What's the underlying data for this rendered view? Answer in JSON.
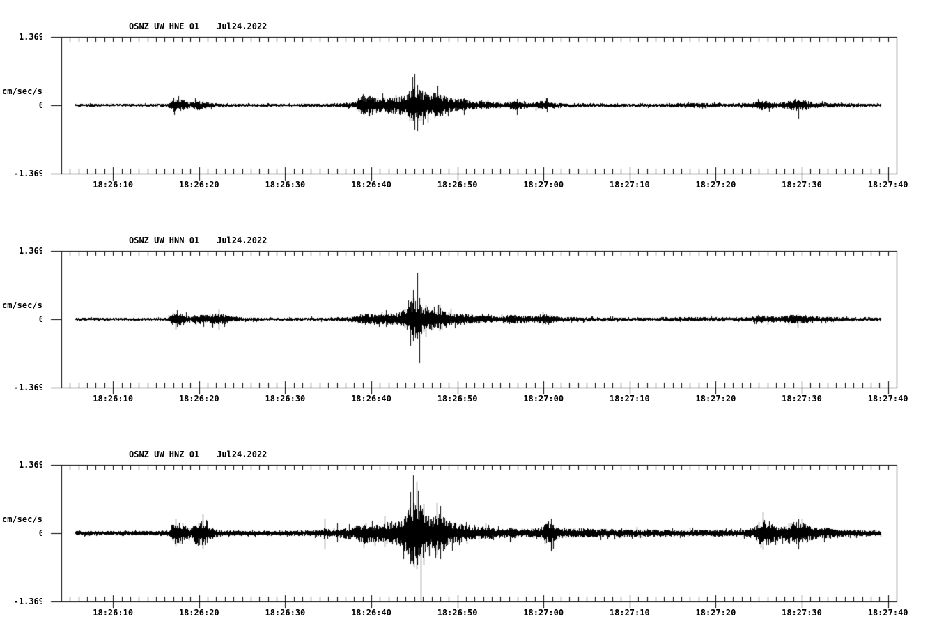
{
  "colors": {
    "background": "#ffffff",
    "foreground": "#000000"
  },
  "y_axis": {
    "unit": "cm/sec/sec",
    "max_label": "1.369",
    "zero_label": "0",
    "min_label": "-1.369"
  },
  "chart_data": [
    {
      "type": "line",
      "kind": "seismogram",
      "title": "QSNZ_UW_HNE_01",
      "date_label": "Jul24,2022",
      "ylabel": "cm/sec/sec",
      "ytick_labels": [
        "1.369",
        "0",
        "-1.369"
      ],
      "ytick_values": [
        1.369,
        0,
        -1.369
      ],
      "ylim": [
        -1.369,
        1.369
      ],
      "x_window": {
        "start_seconds": 4,
        "end_seconds": 101,
        "minor_tick_seconds": 1,
        "major_tick_seconds": 10
      },
      "xticks": [
        {
          "t": 10,
          "label": "18:26:10"
        },
        {
          "t": 20,
          "label": "18:26:20"
        },
        {
          "t": 30,
          "label": "18:26:30"
        },
        {
          "t": 40,
          "label": "18:26:40"
        },
        {
          "t": 50,
          "label": "18:26:50"
        },
        {
          "t": 60,
          "label": "18:27:00"
        },
        {
          "t": 70,
          "label": "18:27:10"
        },
        {
          "t": 80,
          "label": "18:27:20"
        },
        {
          "t": 90,
          "label": "18:27:30"
        },
        {
          "t": 100,
          "label": "18:27:40"
        }
      ],
      "seed": 11,
      "trace": {
        "start": 5.6,
        "end": 99.2,
        "envelope": [
          [
            5.6,
            0.028
          ],
          [
            16.3,
            0.03
          ],
          [
            17.0,
            0.13
          ],
          [
            18.2,
            0.12
          ],
          [
            19.0,
            0.05
          ],
          [
            19.7,
            0.1
          ],
          [
            20.8,
            0.08
          ],
          [
            21.7,
            0.04
          ],
          [
            23,
            0.032
          ],
          [
            28,
            0.03
          ],
          [
            33,
            0.032
          ],
          [
            35.5,
            0.04
          ],
          [
            37.2,
            0.05
          ],
          [
            38.2,
            0.07
          ],
          [
            38.7,
            0.21
          ],
          [
            39.8,
            0.19
          ],
          [
            40.8,
            0.15
          ],
          [
            41.8,
            0.16
          ],
          [
            42.8,
            0.17
          ],
          [
            43.6,
            0.2
          ],
          [
            44.3,
            0.3
          ],
          [
            45.0,
            0.4
          ],
          [
            45.6,
            0.34
          ],
          [
            46.3,
            0.22
          ],
          [
            47.1,
            0.26
          ],
          [
            48.0,
            0.25
          ],
          [
            48.8,
            0.16
          ],
          [
            49.8,
            0.12
          ],
          [
            50.6,
            0.15
          ],
          [
            51.4,
            0.11
          ],
          [
            52.4,
            0.08
          ],
          [
            53.3,
            0.09
          ],
          [
            54.3,
            0.06
          ],
          [
            55.6,
            0.05
          ],
          [
            56.6,
            0.11
          ],
          [
            57.6,
            0.06
          ],
          [
            58.6,
            0.05
          ],
          [
            59.4,
            0.08
          ],
          [
            60.2,
            0.1
          ],
          [
            61.2,
            0.05
          ],
          [
            63,
            0.042
          ],
          [
            66,
            0.038
          ],
          [
            70,
            0.033
          ],
          [
            74,
            0.035
          ],
          [
            77.5,
            0.05
          ],
          [
            79.5,
            0.045
          ],
          [
            81.5,
            0.035
          ],
          [
            84.2,
            0.05
          ],
          [
            85.0,
            0.1
          ],
          [
            86.2,
            0.08
          ],
          [
            87.2,
            0.05
          ],
          [
            88.2,
            0.08
          ],
          [
            89.2,
            0.12
          ],
          [
            90.2,
            0.1
          ],
          [
            91.4,
            0.06
          ],
          [
            93,
            0.05
          ],
          [
            95,
            0.04
          ],
          [
            99.2,
            0.032
          ]
        ],
        "spikes": [
          [
            39.0,
            0.22,
            -0.18
          ],
          [
            44.6,
            0.3,
            -0.26
          ],
          [
            45.05,
            0.63,
            -0.33
          ],
          [
            45.3,
            0.4,
            -0.52
          ],
          [
            46.2,
            0.26,
            -0.28
          ],
          [
            56.9,
            0.13,
            -0.19
          ],
          [
            60.4,
            0.12,
            -0.14
          ],
          [
            89.6,
            0.11,
            -0.28
          ]
        ]
      }
    },
    {
      "type": "line",
      "kind": "seismogram",
      "title": "QSNZ_UW_HNN_01",
      "date_label": "Jul24,2022",
      "ylabel": "cm/sec/sec",
      "ytick_labels": [
        "1.369",
        "0",
        "-1.369"
      ],
      "ytick_values": [
        1.369,
        0,
        -1.369
      ],
      "ylim": [
        -1.369,
        1.369
      ],
      "x_window": {
        "start_seconds": 4,
        "end_seconds": 101,
        "minor_tick_seconds": 1,
        "major_tick_seconds": 10
      },
      "xticks": [
        {
          "t": 10,
          "label": "18:26:10"
        },
        {
          "t": 20,
          "label": "18:26:20"
        },
        {
          "t": 30,
          "label": "18:26:30"
        },
        {
          "t": 40,
          "label": "18:26:40"
        },
        {
          "t": 50,
          "label": "18:26:50"
        },
        {
          "t": 60,
          "label": "18:27:00"
        },
        {
          "t": 70,
          "label": "18:27:10"
        },
        {
          "t": 80,
          "label": "18:27:20"
        },
        {
          "t": 90,
          "label": "18:27:30"
        },
        {
          "t": 100,
          "label": "18:27:40"
        }
      ],
      "seed": 22,
      "trace": {
        "start": 5.6,
        "end": 99.2,
        "envelope": [
          [
            5.6,
            0.028
          ],
          [
            16.3,
            0.03
          ],
          [
            17.0,
            0.14
          ],
          [
            18.2,
            0.11
          ],
          [
            19.0,
            0.05
          ],
          [
            19.7,
            0.11
          ],
          [
            20.8,
            0.1
          ],
          [
            21.8,
            0.12
          ],
          [
            22.8,
            0.11
          ],
          [
            23.8,
            0.06
          ],
          [
            25,
            0.04
          ],
          [
            27,
            0.032
          ],
          [
            31,
            0.03
          ],
          [
            35,
            0.035
          ],
          [
            37,
            0.045
          ],
          [
            38.3,
            0.06
          ],
          [
            38.8,
            0.12
          ],
          [
            40,
            0.11
          ],
          [
            41,
            0.1
          ],
          [
            42,
            0.12
          ],
          [
            43,
            0.13
          ],
          [
            43.8,
            0.18
          ],
          [
            44.4,
            0.28
          ],
          [
            45.1,
            0.38
          ],
          [
            45.7,
            0.33
          ],
          [
            46.4,
            0.22
          ],
          [
            47.4,
            0.17
          ],
          [
            48.1,
            0.21
          ],
          [
            48.9,
            0.14
          ],
          [
            49.9,
            0.11
          ],
          [
            50.8,
            0.12
          ],
          [
            51.8,
            0.09
          ],
          [
            53.2,
            0.08
          ],
          [
            54.8,
            0.05
          ],
          [
            56.4,
            0.1
          ],
          [
            57.6,
            0.08
          ],
          [
            58.7,
            0.06
          ],
          [
            59.5,
            0.1
          ],
          [
            60.6,
            0.1
          ],
          [
            61.8,
            0.05
          ],
          [
            63.5,
            0.045
          ],
          [
            66,
            0.04
          ],
          [
            70,
            0.036
          ],
          [
            74,
            0.04
          ],
          [
            78,
            0.046
          ],
          [
            80,
            0.04
          ],
          [
            82,
            0.036
          ],
          [
            84.2,
            0.05
          ],
          [
            85.0,
            0.09
          ],
          [
            86.2,
            0.07
          ],
          [
            87.2,
            0.05
          ],
          [
            88.2,
            0.08
          ],
          [
            89.2,
            0.1
          ],
          [
            90.2,
            0.09
          ],
          [
            91.4,
            0.06
          ],
          [
            93,
            0.05
          ],
          [
            95,
            0.042
          ],
          [
            99.2,
            0.036
          ]
        ],
        "spikes": [
          [
            17.4,
            0.18,
            -0.15
          ],
          [
            22.3,
            0.2,
            -0.22
          ],
          [
            44.5,
            0.34,
            -0.52
          ],
          [
            44.85,
            0.58,
            -0.44
          ],
          [
            45.3,
            0.93,
            -0.4
          ],
          [
            45.55,
            0.44,
            -0.88
          ],
          [
            46.3,
            0.3,
            -0.34
          ],
          [
            47.9,
            0.29,
            -0.24
          ],
          [
            59.9,
            0.14,
            -0.13
          ],
          [
            89.5,
            0.1,
            -0.16
          ]
        ]
      }
    },
    {
      "type": "line",
      "kind": "seismogram",
      "title": "QSNZ_UW_HNZ_01",
      "date_label": "Jul24,2022",
      "ylabel": "cm/sec/sec",
      "ytick_labels": [
        "1.369",
        "0",
        "-1.369"
      ],
      "ytick_values": [
        1.369,
        0,
        -1.369
      ],
      "ylim": [
        -1.369,
        1.369
      ],
      "x_window": {
        "start_seconds": 4,
        "end_seconds": 101,
        "minor_tick_seconds": 1,
        "major_tick_seconds": 10
      },
      "xticks": [
        {
          "t": 10,
          "label": "18:26:10"
        },
        {
          "t": 20,
          "label": "18:26:20"
        },
        {
          "t": 30,
          "label": "18:26:30"
        },
        {
          "t": 40,
          "label": "18:26:40"
        },
        {
          "t": 50,
          "label": "18:26:50"
        },
        {
          "t": 60,
          "label": "18:27:00"
        },
        {
          "t": 70,
          "label": "18:27:10"
        },
        {
          "t": 80,
          "label": "18:27:20"
        },
        {
          "t": 90,
          "label": "18:27:30"
        },
        {
          "t": 100,
          "label": "18:27:40"
        }
      ],
      "seed": 33,
      "trace": {
        "start": 5.6,
        "end": 99.2,
        "envelope": [
          [
            5.6,
            0.042
          ],
          [
            12,
            0.045
          ],
          [
            16.4,
            0.05
          ],
          [
            17.0,
            0.24
          ],
          [
            18.1,
            0.21
          ],
          [
            19.0,
            0.09
          ],
          [
            19.8,
            0.25
          ],
          [
            20.6,
            0.27
          ],
          [
            21.6,
            0.11
          ],
          [
            22.6,
            0.06
          ],
          [
            25,
            0.052
          ],
          [
            28,
            0.05
          ],
          [
            31,
            0.055
          ],
          [
            33.3,
            0.06
          ],
          [
            34.5,
            0.09
          ],
          [
            35.4,
            0.07
          ],
          [
            36.4,
            0.09
          ],
          [
            37.4,
            0.12
          ],
          [
            38.4,
            0.16
          ],
          [
            39.2,
            0.21
          ],
          [
            40.1,
            0.17
          ],
          [
            41,
            0.19
          ],
          [
            42,
            0.23
          ],
          [
            43,
            0.25
          ],
          [
            43.7,
            0.34
          ],
          [
            44.3,
            0.55
          ],
          [
            44.9,
            0.72
          ],
          [
            45.4,
            0.62
          ],
          [
            45.9,
            0.52
          ],
          [
            46.4,
            0.38
          ],
          [
            47.0,
            0.3
          ],
          [
            47.6,
            0.4
          ],
          [
            48.2,
            0.4
          ],
          [
            48.9,
            0.27
          ],
          [
            49.8,
            0.21
          ],
          [
            50.6,
            0.19
          ],
          [
            51.5,
            0.16
          ],
          [
            52.3,
            0.13
          ],
          [
            53.2,
            0.14
          ],
          [
            54.2,
            0.11
          ],
          [
            55.2,
            0.1
          ],
          [
            56.2,
            0.12
          ],
          [
            57.2,
            0.1
          ],
          [
            58.2,
            0.09
          ],
          [
            59.0,
            0.1
          ],
          [
            59.8,
            0.13
          ],
          [
            60.4,
            0.22
          ],
          [
            61.0,
            0.24
          ],
          [
            61.8,
            0.11
          ],
          [
            62.8,
            0.09
          ],
          [
            64,
            0.1
          ],
          [
            65.5,
            0.09
          ],
          [
            67.5,
            0.085
          ],
          [
            70,
            0.08
          ],
          [
            72.5,
            0.075
          ],
          [
            75,
            0.07
          ],
          [
            77,
            0.065
          ],
          [
            79,
            0.07
          ],
          [
            81,
            0.072
          ],
          [
            83,
            0.062
          ],
          [
            84.3,
            0.1
          ],
          [
            85.0,
            0.24
          ],
          [
            85.8,
            0.28
          ],
          [
            86.8,
            0.19
          ],
          [
            87.6,
            0.12
          ],
          [
            88.4,
            0.21
          ],
          [
            89.2,
            0.24
          ],
          [
            90.2,
            0.21
          ],
          [
            91.2,
            0.14
          ],
          [
            92.5,
            0.12
          ],
          [
            94,
            0.09
          ],
          [
            96,
            0.07
          ],
          [
            98,
            0.06
          ],
          [
            99.2,
            0.05
          ]
        ],
        "spikes": [
          [
            17.3,
            0.3,
            -0.26
          ],
          [
            20.4,
            0.38,
            -0.3
          ],
          [
            34.6,
            0.3,
            -0.32
          ],
          [
            36.0,
            0.2,
            -0.18
          ],
          [
            41.5,
            0.33,
            -0.28
          ],
          [
            44.5,
            0.82,
            -0.55
          ],
          [
            44.85,
            1.16,
            -0.62
          ],
          [
            45.25,
            1.04,
            -0.72
          ],
          [
            45.75,
            0.55,
            -1.369
          ],
          [
            46.1,
            0.58,
            -0.64
          ],
          [
            47.6,
            0.62,
            -0.44
          ],
          [
            48.0,
            0.54,
            -0.52
          ],
          [
            60.9,
            0.3,
            -0.36
          ],
          [
            85.5,
            0.42,
            -0.34
          ],
          [
            89.6,
            0.28,
            -0.32
          ]
        ]
      }
    }
  ]
}
